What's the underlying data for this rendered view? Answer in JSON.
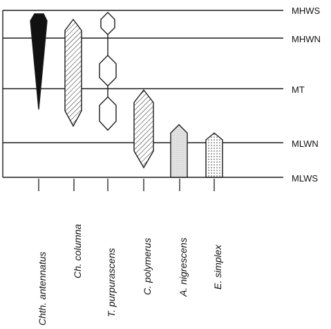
{
  "tide_levels": [
    {
      "key": "MHWS",
      "label": "MHWS"
    },
    {
      "key": "MHWN",
      "label": "MHWN"
    },
    {
      "key": "MT",
      "label": "MT"
    },
    {
      "key": "MLWN",
      "label": "MLWN"
    },
    {
      "key": "MLWS",
      "label": "MLWS"
    }
  ],
  "species": [
    {
      "label": "Chth. antennatus",
      "fill": "solid-black",
      "shape": "tapering-wedge"
    },
    {
      "label": "Ch. columna",
      "fill": "diagonal-hatch",
      "shape": "elongated-hexagon"
    },
    {
      "label": "T. purpurascens",
      "fill": "white",
      "shape": "chain-of-hexagons"
    },
    {
      "label": "C. polymerus",
      "fill": "diagonal-hatch",
      "shape": "elongated-hexagon"
    },
    {
      "label": "A. nigrescens",
      "fill": "light-stipple",
      "shape": "pointed-bar"
    },
    {
      "label": "E. simplex",
      "fill": "dotted",
      "shape": "pointed-bar"
    }
  ],
  "colors": {
    "ink": "#1a1a1a",
    "background": "#ffffff"
  }
}
